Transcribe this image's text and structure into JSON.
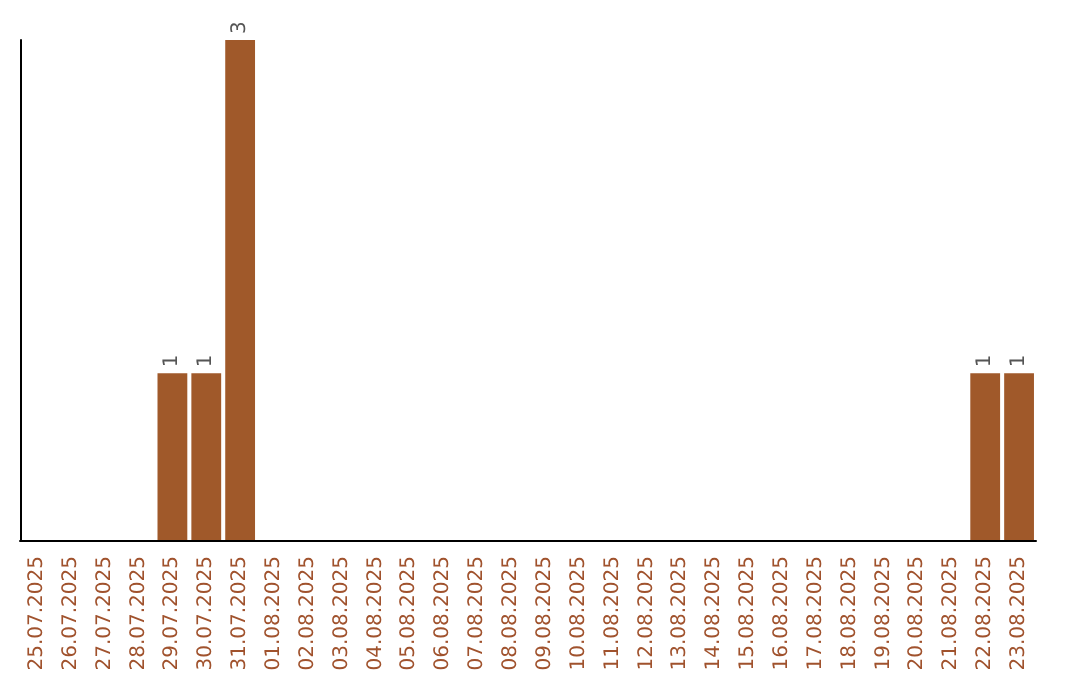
{
  "chart_data": {
    "type": "bar",
    "categories": [
      "25.07.2025",
      "26.07.2025",
      "27.07.2025",
      "28.07.2025",
      "29.07.2025",
      "30.07.2025",
      "31.07.2025",
      "01.08.2025",
      "02.08.2025",
      "03.08.2025",
      "04.08.2025",
      "05.08.2025",
      "06.08.2025",
      "07.08.2025",
      "08.08.2025",
      "09.08.2025",
      "10.08.2025",
      "11.08.2025",
      "12.08.2025",
      "13.08.2025",
      "14.08.2025",
      "15.08.2025",
      "16.08.2025",
      "17.08.2025",
      "18.08.2025",
      "19.08.2025",
      "20.08.2025",
      "21.08.2025",
      "22.08.2025",
      "23.08.2025"
    ],
    "values": [
      0,
      0,
      0,
      0,
      1,
      1,
      3,
      0,
      0,
      0,
      0,
      0,
      0,
      0,
      0,
      0,
      0,
      0,
      0,
      0,
      0,
      0,
      0,
      0,
      0,
      0,
      0,
      0,
      1,
      1
    ],
    "value_labels": [
      null,
      null,
      null,
      null,
      "1",
      "1",
      "3",
      null,
      null,
      null,
      null,
      null,
      null,
      null,
      null,
      null,
      null,
      null,
      null,
      null,
      null,
      null,
      null,
      null,
      null,
      null,
      null,
      null,
      "1",
      "1"
    ],
    "color": "#a0592a",
    "grid": false,
    "tick_labels": "x"
  }
}
